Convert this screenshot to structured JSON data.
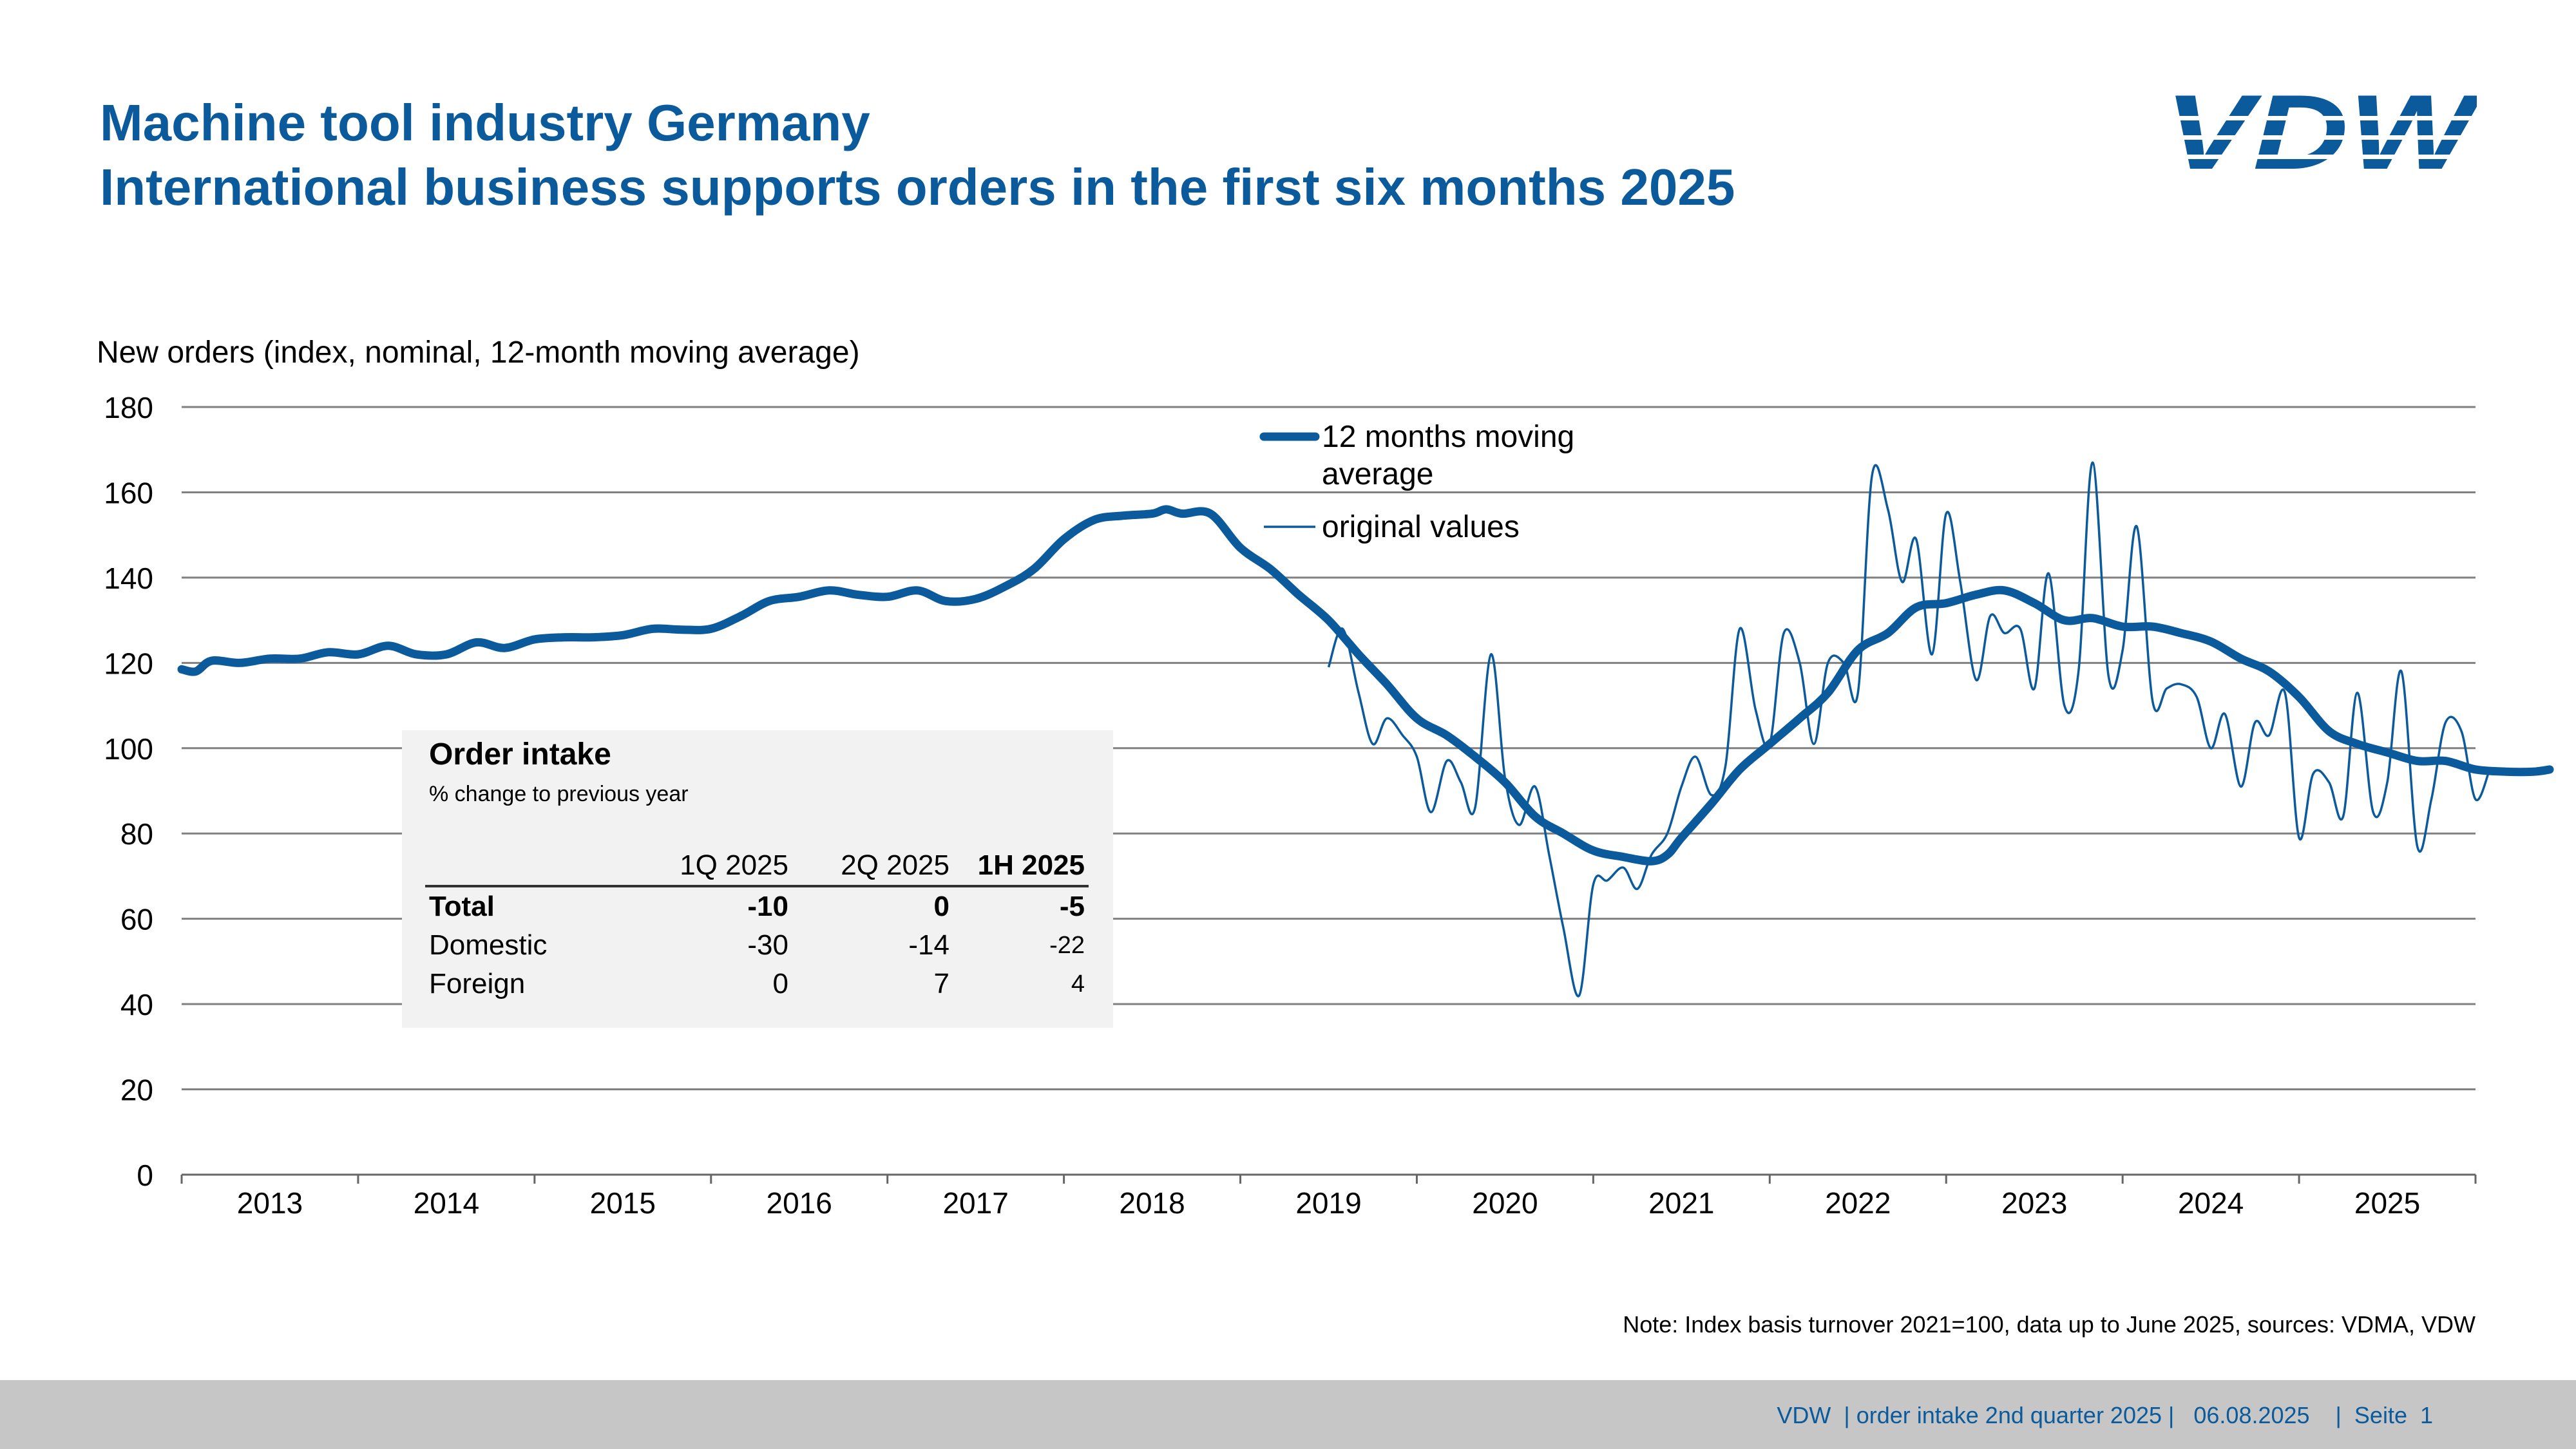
{
  "header": {
    "title": "Machine tool industry Germany",
    "subtitle": "International business supports orders in the first six months 2025"
  },
  "logo": {
    "text": "VDW",
    "color": "#0a5a9c"
  },
  "chart_data": {
    "type": "line",
    "ylabel": "New orders (index, nominal, 12-month moving average)",
    "ylim": [
      0,
      180
    ],
    "yticks": [
      "0",
      "20",
      "40",
      "60",
      "80",
      "100",
      "120",
      "140",
      "160",
      "180"
    ],
    "xlim": [
      2012.5,
      2025.5
    ],
    "xtick_labels": [
      "2013",
      "2014",
      "2015",
      "2016",
      "2017",
      "2018",
      "2019",
      "2020",
      "2021",
      "2022",
      "2023",
      "2024",
      "2025"
    ],
    "grid": true,
    "legend_position": "top-center",
    "colors": {
      "series": "#0a5a9c",
      "grid": "#808080"
    },
    "series": [
      {
        "name": "12 months moving average",
        "style": "thick",
        "points": [
          [
            2012.5,
            118.5
          ],
          [
            2012.58,
            118
          ],
          [
            2012.67,
            120.5
          ],
          [
            2012.83,
            120
          ],
          [
            2013.0,
            121
          ],
          [
            2013.17,
            121
          ],
          [
            2013.33,
            122.5
          ],
          [
            2013.5,
            122
          ],
          [
            2013.67,
            124
          ],
          [
            2013.83,
            122
          ],
          [
            2014.0,
            122
          ],
          [
            2014.17,
            124.8
          ],
          [
            2014.33,
            123.5
          ],
          [
            2014.5,
            125.5
          ],
          [
            2014.67,
            126
          ],
          [
            2014.83,
            126
          ],
          [
            2015.0,
            126.5
          ],
          [
            2015.17,
            128
          ],
          [
            2015.33,
            127.8
          ],
          [
            2015.5,
            128
          ],
          [
            2015.67,
            131
          ],
          [
            2015.83,
            134.5
          ],
          [
            2016.0,
            135.5
          ],
          [
            2016.17,
            137
          ],
          [
            2016.33,
            136
          ],
          [
            2016.5,
            135.5
          ],
          [
            2016.67,
            137
          ],
          [
            2016.83,
            134.5
          ],
          [
            2017.0,
            135
          ],
          [
            2017.17,
            138
          ],
          [
            2017.33,
            142
          ],
          [
            2017.5,
            149
          ],
          [
            2017.67,
            153.5
          ],
          [
            2017.83,
            154.5
          ],
          [
            2018.0,
            155
          ],
          [
            2018.08,
            156
          ],
          [
            2018.17,
            155
          ],
          [
            2018.33,
            155
          ],
          [
            2018.5,
            147
          ],
          [
            2018.67,
            142
          ],
          [
            2018.83,
            136
          ],
          [
            2019.0,
            130
          ],
          [
            2019.17,
            122
          ],
          [
            2019.33,
            115
          ],
          [
            2019.5,
            107
          ],
          [
            2019.67,
            103
          ],
          [
            2019.83,
            98
          ],
          [
            2020.0,
            92
          ],
          [
            2020.17,
            84
          ],
          [
            2020.33,
            80
          ],
          [
            2020.5,
            76
          ],
          [
            2020.67,
            74.5
          ],
          [
            2020.83,
            73.5
          ],
          [
            2020.92,
            75
          ],
          [
            2021.0,
            79
          ],
          [
            2021.17,
            87
          ],
          [
            2021.33,
            95
          ],
          [
            2021.5,
            101
          ],
          [
            2021.67,
            107
          ],
          [
            2021.83,
            113
          ],
          [
            2022.0,
            123
          ],
          [
            2022.17,
            127
          ],
          [
            2022.33,
            133
          ],
          [
            2022.5,
            134
          ],
          [
            2022.67,
            136
          ],
          [
            2022.83,
            137
          ],
          [
            2023.0,
            134
          ],
          [
            2023.17,
            130
          ],
          [
            2023.33,
            130.5
          ],
          [
            2023.5,
            128.5
          ],
          [
            2023.67,
            128.5
          ],
          [
            2023.83,
            127
          ],
          [
            2024.0,
            125
          ],
          [
            2024.17,
            121
          ],
          [
            2024.33,
            118
          ],
          [
            2024.5,
            112
          ],
          [
            2024.67,
            104
          ],
          [
            2024.83,
            101
          ],
          [
            2025.0,
            99
          ],
          [
            2025.17,
            97
          ],
          [
            2025.33,
            97
          ],
          [
            2025.5,
            95
          ],
          [
            2025.67,
            94.5
          ],
          [
            2025.83,
            94.5
          ],
          [
            2025.92,
            95
          ]
        ]
      },
      {
        "name": "original values",
        "style": "thin",
        "points": [
          [
            2019.0,
            119
          ],
          [
            2019.08,
            128
          ],
          [
            2019.17,
            113
          ],
          [
            2019.25,
            101
          ],
          [
            2019.33,
            107
          ],
          [
            2019.42,
            103
          ],
          [
            2019.5,
            98
          ],
          [
            2019.58,
            85
          ],
          [
            2019.67,
            97
          ],
          [
            2019.75,
            92
          ],
          [
            2019.83,
            86
          ],
          [
            2019.92,
            122
          ],
          [
            2020.0,
            93
          ],
          [
            2020.08,
            82
          ],
          [
            2020.17,
            91
          ],
          [
            2020.25,
            75
          ],
          [
            2020.33,
            58
          ],
          [
            2020.42,
            42
          ],
          [
            2020.5,
            68
          ],
          [
            2020.58,
            69
          ],
          [
            2020.67,
            72
          ],
          [
            2020.75,
            67
          ],
          [
            2020.83,
            75
          ],
          [
            2020.92,
            80
          ],
          [
            2021.0,
            91
          ],
          [
            2021.08,
            98
          ],
          [
            2021.17,
            89
          ],
          [
            2021.25,
            96
          ],
          [
            2021.33,
            128
          ],
          [
            2021.42,
            109
          ],
          [
            2021.5,
            101
          ],
          [
            2021.58,
            127
          ],
          [
            2021.67,
            120
          ],
          [
            2021.75,
            101
          ],
          [
            2021.83,
            120
          ],
          [
            2021.92,
            120
          ],
          [
            2022.0,
            113
          ],
          [
            2022.08,
            164
          ],
          [
            2022.17,
            156
          ],
          [
            2022.25,
            139
          ],
          [
            2022.33,
            149
          ],
          [
            2022.42,
            122
          ],
          [
            2022.5,
            155
          ],
          [
            2022.58,
            139
          ],
          [
            2022.67,
            116
          ],
          [
            2022.75,
            131
          ],
          [
            2022.83,
            127
          ],
          [
            2022.92,
            128
          ],
          [
            2023.0,
            114
          ],
          [
            2023.08,
            141
          ],
          [
            2023.17,
            110
          ],
          [
            2023.25,
            118
          ],
          [
            2023.33,
            167
          ],
          [
            2023.42,
            117
          ],
          [
            2023.5,
            123
          ],
          [
            2023.58,
            152
          ],
          [
            2023.67,
            111
          ],
          [
            2023.75,
            114
          ],
          [
            2023.83,
            115
          ],
          [
            2023.92,
            112
          ],
          [
            2024.0,
            100
          ],
          [
            2024.08,
            108
          ],
          [
            2024.17,
            91
          ],
          [
            2024.25,
            106
          ],
          [
            2024.33,
            103
          ],
          [
            2024.42,
            113
          ],
          [
            2024.5,
            79
          ],
          [
            2024.58,
            94
          ],
          [
            2024.67,
            92
          ],
          [
            2024.75,
            84
          ],
          [
            2024.83,
            113
          ],
          [
            2024.92,
            85
          ],
          [
            2025.0,
            92
          ],
          [
            2025.08,
            118
          ],
          [
            2025.17,
            77
          ],
          [
            2025.25,
            88
          ],
          [
            2025.33,
            106
          ],
          [
            2025.42,
            104
          ],
          [
            2025.5,
            88
          ],
          [
            2025.58,
            95
          ]
        ]
      }
    ]
  },
  "order_intake": {
    "title": "Order intake",
    "subtitle": "% change to previous year",
    "columns": [
      "1Q 2025",
      "2Q 2025",
      "1H 2025"
    ],
    "rows": [
      {
        "label": "Total",
        "values": [
          "-10",
          "0",
          "-5"
        ]
      },
      {
        "label": "Domestic",
        "values": [
          "-30",
          "-14",
          "-22"
        ]
      },
      {
        "label": "Foreign",
        "values": [
          "0",
          "7",
          "4"
        ]
      }
    ]
  },
  "note": "Note: Index basis turnover 2021=100, data up to June 2025, sources: VDMA, VDW",
  "footer": {
    "text": "VDW  | order intake 2nd quarter 2025 |   06.08.2025    |  Seite  1"
  }
}
